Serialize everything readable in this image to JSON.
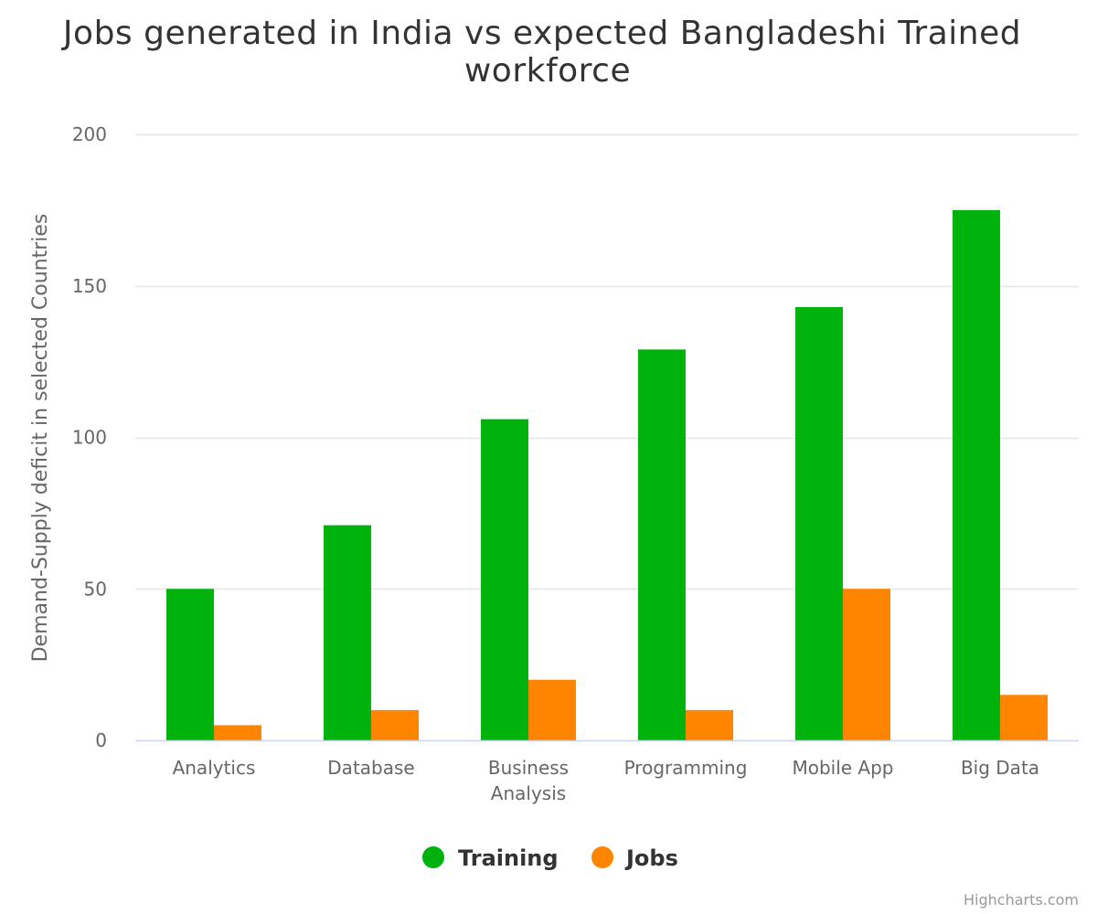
{
  "chart_data": {
    "type": "bar",
    "title": "Jobs generated in India vs expected Bangladeshi Trained workforce",
    "title_lines": [
      "Jobs generated in India vs expected Bangladeshi Trained",
      "workforce"
    ],
    "xlabel": "",
    "ylabel": "Demand-Supply deficit in selected Countries",
    "categories": [
      "Analytics",
      "Database",
      "Business Analysis",
      "Programming",
      "Mobile App",
      "Big Data"
    ],
    "category_label_lines": [
      [
        "Analytics"
      ],
      [
        "Database"
      ],
      [
        "Business",
        "Analysis"
      ],
      [
        "Programming"
      ],
      [
        "Mobile App"
      ],
      [
        "Big Data"
      ]
    ],
    "series": [
      {
        "name": "Training",
        "color": "#00b30c",
        "values": [
          50,
          71,
          106,
          129,
          143,
          175
        ]
      },
      {
        "name": "Jobs",
        "color": "#ff8400",
        "values": [
          5,
          10,
          20,
          10,
          50,
          15
        ]
      }
    ],
    "ylim": [
      0,
      200
    ],
    "yticks": [
      0,
      50,
      100,
      150,
      200
    ],
    "grid": true,
    "legend_position": "bottom-center",
    "credits": "Highcharts.com"
  }
}
